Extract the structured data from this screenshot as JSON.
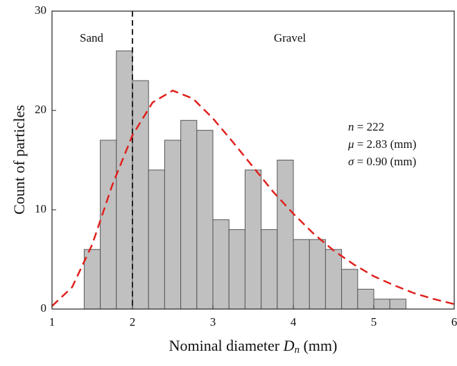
{
  "chart_data": {
    "type": "histogram",
    "xlabel": {
      "text": "Nominal diameter",
      "symbol": "D",
      "subscript": "n",
      "unit": "(mm)"
    },
    "ylabel": "Count of particles",
    "bins": [
      1.4,
      1.6,
      1.8,
      2.0,
      2.2,
      2.4,
      2.6,
      2.8,
      3.0,
      3.2,
      3.4,
      3.6,
      3.8,
      4.0,
      4.2,
      4.4,
      4.6,
      4.8,
      5.0,
      5.2,
      5.4
    ],
    "values": [
      6,
      17,
      26,
      23,
      14,
      17,
      19,
      18,
      9,
      8,
      14,
      8,
      15,
      7,
      7,
      6,
      4,
      2,
      1,
      1
    ],
    "color": "#c0c0c0",
    "edge_color": "#555555",
    "fit": {
      "color": "#e0201c",
      "x": [
        1.0,
        1.25,
        1.5,
        1.75,
        2.0,
        2.25,
        2.5,
        2.75,
        3.0,
        3.25,
        3.5,
        3.75,
        4.0,
        4.25,
        4.5,
        4.75,
        5.0,
        5.25,
        5.5,
        5.75,
        6.0
      ],
      "values": [
        0.3,
        2.2,
        6.5,
        12.5,
        17.5,
        20.8,
        22.0,
        21.2,
        19.2,
        16.8,
        14.3,
        11.8,
        9.6,
        7.6,
        5.9,
        4.5,
        3.3,
        2.4,
        1.6,
        1.0,
        0.5
      ]
    },
    "boundary_x": 2,
    "annotations": [
      "Sand",
      "Gravel"
    ],
    "stats": [
      {
        "symbol": "n",
        "text": "= 222"
      },
      {
        "symbol": "μ",
        "text": "= 2.83 (mm)"
      },
      {
        "symbol": "σ",
        "text": "= 0.90 (mm)"
      }
    ],
    "xlim": [
      1,
      6
    ],
    "xticks": [
      1,
      2,
      3,
      4,
      5,
      6
    ],
    "ylim": [
      0,
      30
    ],
    "yticks": [
      0,
      10,
      20,
      30
    ]
  }
}
